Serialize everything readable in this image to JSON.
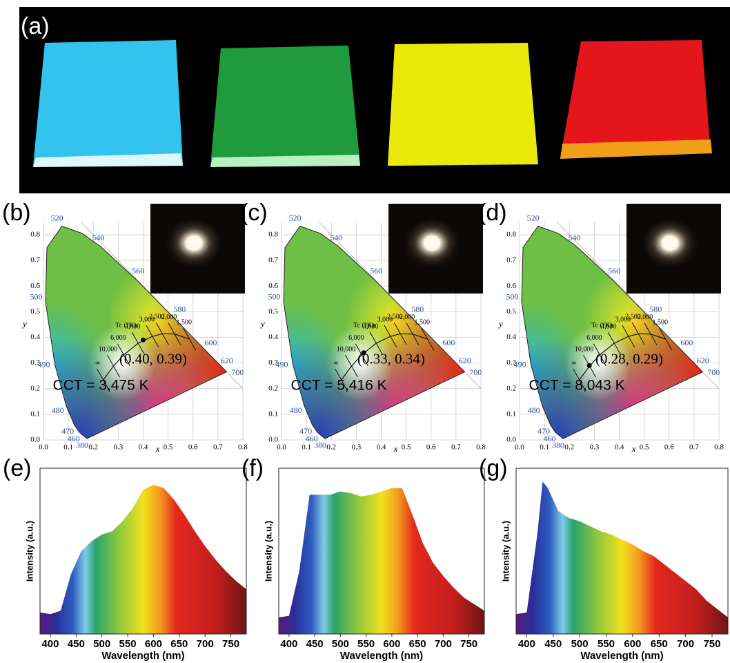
{
  "photo": {
    "panel_label": "(a)"
  },
  "chart_data": [
    {
      "type": "cie",
      "panel_label": "(b)",
      "xlabel": "x",
      "ylabel": "y",
      "xlim": [
        0,
        0.8
      ],
      "ylim": [
        0,
        0.85
      ],
      "xticks": [
        {
          "value": 0,
          "label": "0.0"
        },
        0.1,
        0.2,
        0.3,
        0.4,
        0.5,
        0.6,
        0.7,
        0.8
      ],
      "yticks": [
        {
          "value": 0,
          "label": "0.0"
        },
        0.1,
        0.2,
        0.3,
        0.4,
        0.5,
        0.6,
        0.7,
        0.8
      ],
      "locus": {
        "labels": [
          "380",
          "460",
          "470",
          "480",
          "490",
          "500",
          null,
          "520",
          null,
          "540",
          "560",
          "580",
          "600",
          "620",
          "700"
        ],
        "x": [
          0.1741,
          0.144,
          0.1241,
          0.0913,
          0.0454,
          0.0082,
          0.0139,
          0.0743,
          0.1547,
          0.2296,
          0.3731,
          0.5125,
          0.627,
          0.6915,
          0.7347
        ],
        "y": [
          0.005,
          0.0297,
          0.0578,
          0.1327,
          0.295,
          0.5384,
          0.7502,
          0.8338,
          0.8059,
          0.7543,
          0.6245,
          0.4866,
          0.3725,
          0.3083,
          0.2653
        ]
      },
      "planck": {
        "title": "Tc (°K)",
        "labels": [
          "∞",
          "10,000",
          "6,000",
          "4,000",
          "3,000",
          "2,500",
          "2,000",
          "1,500"
        ],
        "x": [
          0.24,
          0.281,
          0.322,
          0.38,
          0.437,
          0.477,
          0.526,
          0.586
        ],
        "y": [
          0.234,
          0.288,
          0.332,
          0.377,
          0.404,
          0.414,
          0.413,
          0.393
        ]
      },
      "point": {
        "x": 0.4,
        "y": 0.39,
        "label": "(0.40, 0.39)"
      },
      "cct_label": "CCT = 3,475 K"
    },
    {
      "type": "cie",
      "panel_label": "(c)",
      "xlabel": "x",
      "ylabel": "y",
      "xlim": [
        0,
        0.8
      ],
      "ylim": [
        0,
        0.85
      ],
      "xticks": [
        {
          "value": 0,
          "label": "0.0"
        },
        0.1,
        0.2,
        0.3,
        0.4,
        0.5,
        0.6,
        0.7,
        0.8
      ],
      "yticks": [
        {
          "value": 0,
          "label": "0.0"
        },
        0.1,
        0.2,
        0.3,
        0.4,
        0.5,
        0.6,
        0.7,
        0.8
      ],
      "locus": {
        "labels": [
          "380",
          "460",
          "470",
          "480",
          "490",
          "500",
          null,
          "520",
          null,
          "540",
          "560",
          "580",
          "600",
          "620",
          "700"
        ],
        "x": [
          0.1741,
          0.144,
          0.1241,
          0.0913,
          0.0454,
          0.0082,
          0.0139,
          0.0743,
          0.1547,
          0.2296,
          0.3731,
          0.5125,
          0.627,
          0.6915,
          0.7347
        ],
        "y": [
          0.005,
          0.0297,
          0.0578,
          0.1327,
          0.295,
          0.5384,
          0.7502,
          0.8338,
          0.8059,
          0.7543,
          0.6245,
          0.4866,
          0.3725,
          0.3083,
          0.2653
        ]
      },
      "planck": {
        "title": "Tc (°K)",
        "labels": [
          "∞",
          "10,000",
          "6,000",
          "4,000",
          "3,000",
          "2,500",
          "2,000",
          "1,500"
        ],
        "x": [
          0.24,
          0.281,
          0.322,
          0.38,
          0.437,
          0.477,
          0.526,
          0.586
        ],
        "y": [
          0.234,
          0.288,
          0.332,
          0.377,
          0.404,
          0.414,
          0.413,
          0.393
        ]
      },
      "point": {
        "x": 0.33,
        "y": 0.34,
        "label": "(0.33, 0.34)"
      },
      "cct_label": "CCT = 5,416 K"
    },
    {
      "type": "cie",
      "panel_label": "(d)",
      "xlabel": "x",
      "ylabel": "y",
      "xlim": [
        0,
        0.8
      ],
      "ylim": [
        0,
        0.85
      ],
      "xticks": [
        {
          "value": 0,
          "label": "0.0"
        },
        0.1,
        0.2,
        0.3,
        0.4,
        0.5,
        0.6,
        0.7,
        0.8
      ],
      "yticks": [
        {
          "value": 0,
          "label": "0.0"
        },
        0.1,
        0.2,
        0.3,
        0.4,
        0.5,
        0.6,
        0.7,
        0.8
      ],
      "locus": {
        "labels": [
          "380",
          "460",
          "470",
          "480",
          "490",
          "500",
          null,
          "520",
          null,
          "540",
          "560",
          "580",
          "600",
          "620",
          "700"
        ],
        "x": [
          0.1741,
          0.144,
          0.1241,
          0.0913,
          0.0454,
          0.0082,
          0.0139,
          0.0743,
          0.1547,
          0.2296,
          0.3731,
          0.5125,
          0.627,
          0.6915,
          0.7347
        ],
        "y": [
          0.005,
          0.0297,
          0.0578,
          0.1327,
          0.295,
          0.5384,
          0.7502,
          0.8338,
          0.8059,
          0.7543,
          0.6245,
          0.4866,
          0.3725,
          0.3083,
          0.2653
        ]
      },
      "planck": {
        "title": "Tc (°K)",
        "labels": [
          "∞",
          "10,000",
          "6,000",
          "4,000",
          "3,000",
          "2,500",
          "2,000",
          "1,500"
        ],
        "x": [
          0.24,
          0.281,
          0.322,
          0.38,
          0.437,
          0.477,
          0.526,
          0.586
        ],
        "y": [
          0.234,
          0.288,
          0.332,
          0.377,
          0.404,
          0.414,
          0.413,
          0.393
        ]
      },
      "point": {
        "x": 0.28,
        "y": 0.29,
        "label": "(0.28, 0.29)"
      },
      "cct_label": "CCT = 8,043 K"
    },
    {
      "type": "area",
      "panel_label": "(e)",
      "xlabel": "Wavelength (nm)",
      "ylabel": "Intensity (a.u.)",
      "xlim": [
        380,
        780
      ],
      "ylim": [
        0,
        1
      ],
      "xticks": [
        400,
        450,
        500,
        550,
        600,
        650,
        700,
        750
      ],
      "x": [
        380,
        400,
        420,
        440,
        460,
        480,
        500,
        520,
        540,
        560,
        580,
        600,
        620,
        640,
        660,
        680,
        700,
        720,
        740,
        760,
        780
      ],
      "values": [
        0.13,
        0.12,
        0.14,
        0.36,
        0.5,
        0.56,
        0.6,
        0.62,
        0.68,
        0.76,
        0.87,
        0.9,
        0.88,
        0.81,
        0.72,
        0.62,
        0.53,
        0.45,
        0.38,
        0.32,
        0.27
      ]
    },
    {
      "type": "area",
      "panel_label": "(f)",
      "xlabel": "Wavelength (nm)",
      "ylabel": "Intensity (a.u.)",
      "xlim": [
        380,
        780
      ],
      "ylim": [
        0,
        1
      ],
      "xticks": [
        400,
        450,
        500,
        550,
        600,
        650,
        700,
        750
      ],
      "x": [
        380,
        400,
        420,
        440,
        460,
        480,
        500,
        520,
        540,
        560,
        580,
        600,
        620,
        640,
        660,
        680,
        700,
        720,
        740,
        760,
        780
      ],
      "values": [
        0.1,
        0.11,
        0.38,
        0.84,
        0.84,
        0.84,
        0.86,
        0.85,
        0.83,
        0.84,
        0.86,
        0.88,
        0.88,
        0.72,
        0.55,
        0.43,
        0.35,
        0.28,
        0.22,
        0.18,
        0.14
      ]
    },
    {
      "type": "area",
      "panel_label": "(g)",
      "xlabel": "Wavelength (nm)",
      "ylabel": "Intensity (a.u.)",
      "xlim": [
        380,
        780
      ],
      "ylim": [
        0,
        1
      ],
      "xticks": [
        400,
        450,
        500,
        550,
        600,
        650,
        700,
        750
      ],
      "x": [
        380,
        400,
        420,
        430,
        440,
        460,
        480,
        500,
        520,
        540,
        560,
        580,
        600,
        620,
        640,
        660,
        680,
        700,
        720,
        740,
        760,
        780
      ],
      "values": [
        0.12,
        0.13,
        0.6,
        0.92,
        0.88,
        0.74,
        0.7,
        0.68,
        0.65,
        0.62,
        0.6,
        0.57,
        0.54,
        0.5,
        0.47,
        0.42,
        0.37,
        0.32,
        0.27,
        0.2,
        0.15,
        0.1
      ]
    }
  ]
}
